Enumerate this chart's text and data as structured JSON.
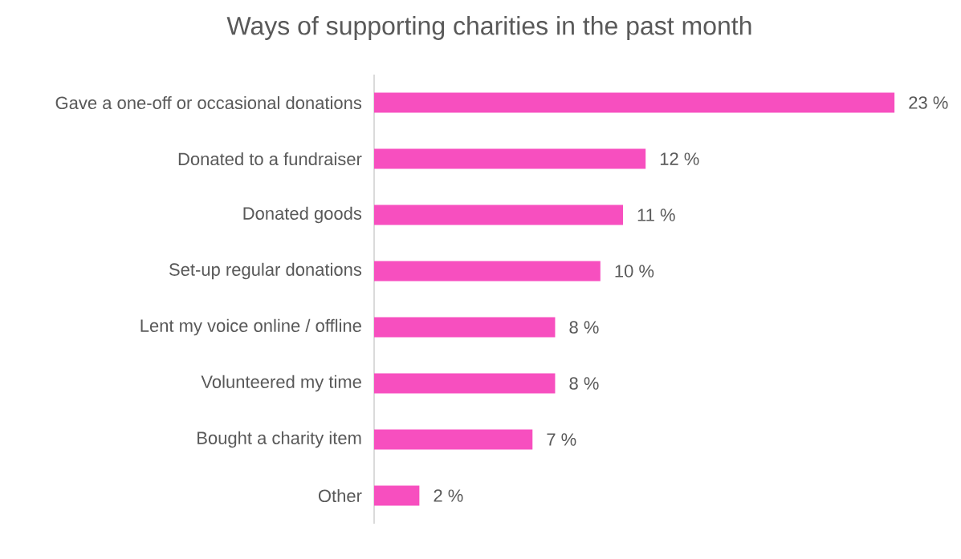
{
  "chart_data": {
    "type": "bar",
    "orientation": "horizontal",
    "title": "Ways of supporting charities in the past month",
    "categories": [
      "Gave a one-off or occasional donations",
      "Donated to a fundraiser",
      "Donated goods",
      "Set-up regular donations",
      "Lent my voice online / offline",
      "Volunteered my time",
      "Bought a charity item",
      "Other"
    ],
    "values": [
      23,
      12,
      11,
      10,
      8,
      8,
      7,
      2
    ],
    "value_labels": [
      "23 %",
      "12 %",
      "11 %",
      "10 %",
      "8 %",
      "8 %",
      "7 %",
      "2 %"
    ],
    "color": "#f74fbf"
  }
}
